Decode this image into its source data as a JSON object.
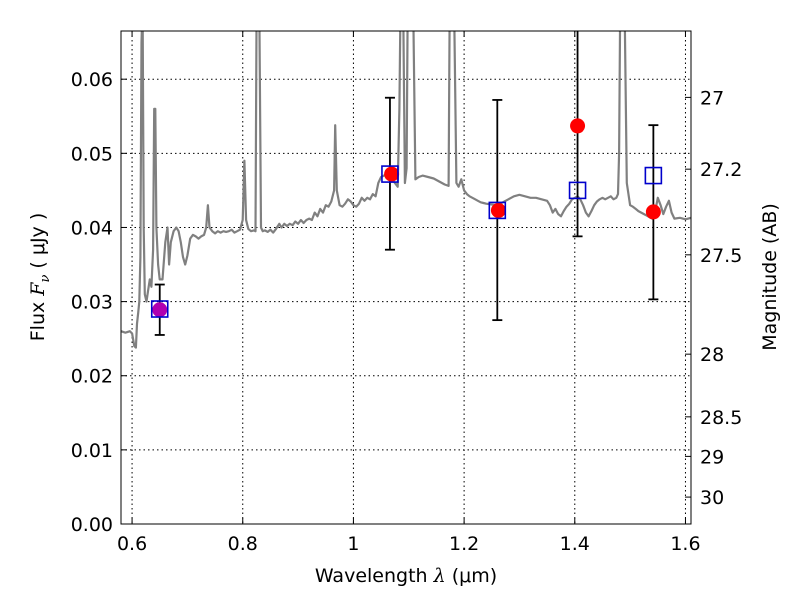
{
  "chart_data": {
    "type": "scatter",
    "xlabel": {
      "prefix": "Wavelength  ",
      "lambda": "λ",
      "units": " (μm)"
    },
    "ylabel": {
      "prefix": "Flux  ",
      "fnu": "F",
      "sub": "ν",
      "units": "  ( μJy )"
    },
    "y2label": "Magnitude (AB)",
    "xlim": [
      0.58,
      1.61
    ],
    "ylim": [
      0.0,
      0.0665
    ],
    "grid": true,
    "x_ticks": [
      0.6,
      0.8,
      1.0,
      1.2,
      1.4,
      1.6
    ],
    "x_tick_labels": [
      "0.6",
      "0.8",
      "1",
      "1.2",
      "1.4",
      "1.6"
    ],
    "y_ticks": [
      0.0,
      0.01,
      0.02,
      0.03,
      0.04,
      0.05,
      0.06
    ],
    "y_tick_labels": [
      "0.00",
      "0.01",
      "0.02",
      "0.03",
      "0.04",
      "0.05",
      "0.06"
    ],
    "y2_ticks": [
      {
        "label": "27",
        "mag": 27.0
      },
      {
        "label": "27.2",
        "mag": 27.2
      },
      {
        "label": "27.5",
        "mag": 27.5
      },
      {
        "label": "28",
        "mag": 28.0
      },
      {
        "label": "28.5",
        "mag": 28.5
      },
      {
        "label": "29",
        "mag": 29.0
      },
      {
        "label": "30",
        "mag": 30.0
      }
    ],
    "series": [
      {
        "kind": "model_spectrum",
        "color": "#808080",
        "points": [
          [
            0.58,
            0.026
          ],
          [
            0.588,
            0.0258
          ],
          [
            0.596,
            0.026
          ],
          [
            0.6,
            0.0257
          ],
          [
            0.604,
            0.024
          ],
          [
            0.607,
            0.0238
          ],
          [
            0.609,
            0.027
          ],
          [
            0.611,
            0.0285
          ],
          [
            0.613,
            0.03
          ],
          [
            0.615,
            0.036
          ],
          [
            0.617,
            0.065
          ],
          [
            0.619,
            0.07
          ],
          [
            0.621,
            0.04
          ],
          [
            0.623,
            0.031
          ],
          [
            0.626,
            0.03
          ],
          [
            0.629,
            0.0315
          ],
          [
            0.632,
            0.033
          ],
          [
            0.635,
            0.032
          ],
          [
            0.638,
            0.037
          ],
          [
            0.64,
            0.056
          ],
          [
            0.642,
            0.056
          ],
          [
            0.644,
            0.04
          ],
          [
            0.647,
            0.035
          ],
          [
            0.65,
            0.033
          ],
          [
            0.655,
            0.033
          ],
          [
            0.66,
            0.038
          ],
          [
            0.664,
            0.04
          ],
          [
            0.667,
            0.035
          ],
          [
            0.67,
            0.038
          ],
          [
            0.675,
            0.0395
          ],
          [
            0.68,
            0.04
          ],
          [
            0.684,
            0.0395
          ],
          [
            0.688,
            0.038
          ],
          [
            0.692,
            0.036
          ],
          [
            0.696,
            0.035
          ],
          [
            0.7,
            0.0362
          ],
          [
            0.705,
            0.0385
          ],
          [
            0.71,
            0.039
          ],
          [
            0.715,
            0.0388
          ],
          [
            0.72,
            0.0385
          ],
          [
            0.725,
            0.0388
          ],
          [
            0.73,
            0.039
          ],
          [
            0.734,
            0.04
          ],
          [
            0.737,
            0.043
          ],
          [
            0.74,
            0.04
          ],
          [
            0.745,
            0.0395
          ],
          [
            0.75,
            0.0392
          ],
          [
            0.755,
            0.0395
          ],
          [
            0.76,
            0.0393
          ],
          [
            0.765,
            0.0395
          ],
          [
            0.77,
            0.0394
          ],
          [
            0.775,
            0.0395
          ],
          [
            0.78,
            0.0397
          ],
          [
            0.785,
            0.0393
          ],
          [
            0.79,
            0.0395
          ],
          [
            0.795,
            0.0397
          ],
          [
            0.8,
            0.041
          ],
          [
            0.803,
            0.049
          ],
          [
            0.806,
            0.041
          ],
          [
            0.81,
            0.0398
          ],
          [
            0.815,
            0.0395
          ],
          [
            0.82,
            0.0396
          ],
          [
            0.823,
            0.0395
          ],
          [
            0.825,
            0.07
          ],
          [
            0.83,
            0.07
          ],
          [
            0.833,
            0.04
          ],
          [
            0.836,
            0.0395
          ],
          [
            0.84,
            0.0396
          ],
          [
            0.845,
            0.0394
          ],
          [
            0.85,
            0.0397
          ],
          [
            0.855,
            0.0393
          ],
          [
            0.86,
            0.0398
          ],
          [
            0.866,
            0.0405
          ],
          [
            0.87,
            0.04
          ],
          [
            0.875,
            0.0405
          ],
          [
            0.88,
            0.0402
          ],
          [
            0.885,
            0.0405
          ],
          [
            0.89,
            0.0403
          ],
          [
            0.895,
            0.0408
          ],
          [
            0.9,
            0.0405
          ],
          [
            0.905,
            0.041
          ],
          [
            0.91,
            0.0406
          ],
          [
            0.915,
            0.041
          ],
          [
            0.92,
            0.0412
          ],
          [
            0.925,
            0.041
          ],
          [
            0.93,
            0.042
          ],
          [
            0.935,
            0.0415
          ],
          [
            0.94,
            0.0425
          ],
          [
            0.945,
            0.042
          ],
          [
            0.95,
            0.043
          ],
          [
            0.955,
            0.0428
          ],
          [
            0.96,
            0.0435
          ],
          [
            0.965,
            0.045
          ],
          [
            0.967,
            0.0538
          ],
          [
            0.97,
            0.045
          ],
          [
            0.975,
            0.043
          ],
          [
            0.98,
            0.0428
          ],
          [
            0.985,
            0.0432
          ],
          [
            0.99,
            0.0438
          ],
          [
            0.995,
            0.0435
          ],
          [
            1.0,
            0.043
          ],
          [
            1.005,
            0.0428
          ],
          [
            1.01,
            0.0432
          ],
          [
            1.015,
            0.044
          ],
          [
            1.02,
            0.0436
          ],
          [
            1.025,
            0.044
          ],
          [
            1.03,
            0.0438
          ],
          [
            1.035,
            0.0445
          ],
          [
            1.04,
            0.0442
          ],
          [
            1.045,
            0.046
          ],
          [
            1.05,
            0.0468
          ],
          [
            1.055,
            0.047
          ],
          [
            1.06,
            0.0472
          ],
          [
            1.065,
            0.047
          ],
          [
            1.07,
            0.0465
          ],
          [
            1.075,
            0.046
          ],
          [
            1.08,
            0.0455
          ],
          [
            1.083,
            0.056
          ],
          [
            1.085,
            0.07
          ],
          [
            1.09,
            0.07
          ],
          [
            1.093,
            0.046
          ],
          [
            1.096,
            0.048
          ],
          [
            1.098,
            0.07
          ],
          [
            1.108,
            0.07
          ],
          [
            1.112,
            0.0465
          ],
          [
            1.118,
            0.0468
          ],
          [
            1.125,
            0.047
          ],
          [
            1.135,
            0.0468
          ],
          [
            1.145,
            0.0466
          ],
          [
            1.155,
            0.0462
          ],
          [
            1.165,
            0.0458
          ],
          [
            1.172,
            0.0456
          ],
          [
            1.174,
            0.07
          ],
          [
            1.182,
            0.07
          ],
          [
            1.186,
            0.046
          ],
          [
            1.19,
            0.0455
          ],
          [
            1.195,
            0.0465
          ],
          [
            1.2,
            0.045
          ],
          [
            1.205,
            0.0445
          ],
          [
            1.21,
            0.0442
          ],
          [
            1.215,
            0.044
          ],
          [
            1.22,
            0.0438
          ],
          [
            1.225,
            0.0436
          ],
          [
            1.23,
            0.0434
          ],
          [
            1.235,
            0.0433
          ],
          [
            1.24,
            0.0432
          ],
          [
            1.25,
            0.0431
          ],
          [
            1.26,
            0.043
          ],
          [
            1.27,
            0.0434
          ],
          [
            1.28,
            0.0438
          ],
          [
            1.29,
            0.0442
          ],
          [
            1.3,
            0.0444
          ],
          [
            1.31,
            0.0442
          ],
          [
            1.32,
            0.044
          ],
          [
            1.33,
            0.044
          ],
          [
            1.34,
            0.0438
          ],
          [
            1.35,
            0.0436
          ],
          [
            1.355,
            0.043
          ],
          [
            1.36,
            0.042
          ],
          [
            1.365,
            0.0425
          ],
          [
            1.37,
            0.0418
          ],
          [
            1.375,
            0.0415
          ],
          [
            1.38,
            0.0422
          ],
          [
            1.385,
            0.0428
          ],
          [
            1.39,
            0.0432
          ],
          [
            1.395,
            0.0438
          ],
          [
            1.4,
            0.044
          ],
          [
            1.405,
            0.0442
          ],
          [
            1.41,
            0.0438
          ],
          [
            1.415,
            0.043
          ],
          [
            1.42,
            0.042
          ],
          [
            1.425,
            0.0415
          ],
          [
            1.43,
            0.0422
          ],
          [
            1.435,
            0.043
          ],
          [
            1.44,
            0.0435
          ],
          [
            1.445,
            0.0438
          ],
          [
            1.45,
            0.044
          ],
          [
            1.455,
            0.0438
          ],
          [
            1.46,
            0.044
          ],
          [
            1.465,
            0.0442
          ],
          [
            1.47,
            0.0438
          ],
          [
            1.475,
            0.044
          ],
          [
            1.478,
            0.0445
          ],
          [
            1.48,
            0.05
          ],
          [
            1.482,
            0.07
          ],
          [
            1.49,
            0.07
          ],
          [
            1.494,
            0.046
          ],
          [
            1.5,
            0.043
          ],
          [
            1.505,
            0.0428
          ],
          [
            1.51,
            0.0425
          ],
          [
            1.515,
            0.0422
          ],
          [
            1.52,
            0.042
          ],
          [
            1.525,
            0.0418
          ],
          [
            1.53,
            0.0416
          ],
          [
            1.535,
            0.0414
          ],
          [
            1.54,
            0.0412
          ],
          [
            1.545,
            0.042
          ],
          [
            1.55,
            0.044
          ],
          [
            1.555,
            0.043
          ],
          [
            1.56,
            0.0418
          ],
          [
            1.565,
            0.0428
          ],
          [
            1.57,
            0.0436
          ],
          [
            1.575,
            0.042
          ],
          [
            1.58,
            0.0412
          ],
          [
            1.59,
            0.0413
          ],
          [
            1.6,
            0.0411
          ],
          [
            1.61,
            0.0413
          ]
        ]
      },
      {
        "kind": "observed_with_errors",
        "color": "#000000",
        "points": [
          {
            "x": 0.65,
            "y": 0.029,
            "ylo": 0.0255,
            "yhi": 0.0323
          },
          {
            "x": 1.066,
            "y": 0.0472,
            "ylo": 0.037,
            "yhi": 0.0575
          },
          {
            "x": 1.26,
            "y": 0.0423,
            "ylo": 0.0275,
            "yhi": 0.0572
          },
          {
            "x": 1.405,
            "y": 0.045,
            "ylo": 0.0388,
            "yhi": 0.0665
          },
          {
            "x": 1.542,
            "y": 0.047,
            "ylo": 0.0303,
            "yhi": 0.0538
          }
        ]
      },
      {
        "kind": "model_points",
        "color": "#ff0000",
        "points": [
          {
            "x": 0.65,
            "y": 0.0289,
            "color": "#b000b0"
          },
          {
            "x": 1.069,
            "y": 0.0472
          },
          {
            "x": 1.262,
            "y": 0.0423
          },
          {
            "x": 1.405,
            "y": 0.0537
          },
          {
            "x": 1.542,
            "y": 0.0421
          }
        ]
      },
      {
        "kind": "square_markers",
        "color": "#0000cc",
        "points": [
          {
            "x": 0.65,
            "y": 0.029
          },
          {
            "x": 1.066,
            "y": 0.0472
          },
          {
            "x": 1.26,
            "y": 0.0423
          },
          {
            "x": 1.405,
            "y": 0.045
          },
          {
            "x": 1.542,
            "y": 0.047
          }
        ]
      }
    ]
  }
}
